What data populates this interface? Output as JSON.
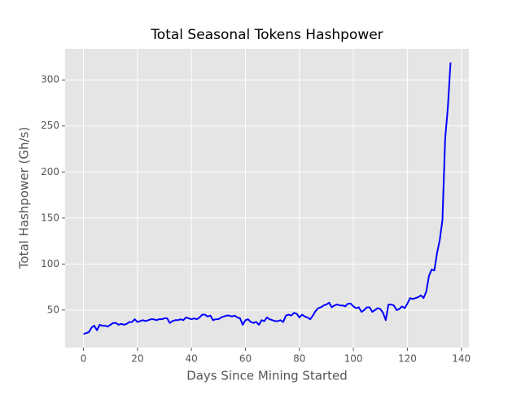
{
  "chart_data": {
    "type": "line",
    "title": "Total Seasonal Tokens Hashpower",
    "xlabel": "Days Since Mining Started",
    "ylabel": "Total Hashpower (Gh/s)",
    "x": [
      0,
      1,
      2,
      3,
      4,
      5,
      6,
      7,
      8,
      9,
      10,
      11,
      12,
      13,
      14,
      15,
      16,
      17,
      18,
      19,
      20,
      21,
      22,
      23,
      24,
      25,
      26,
      27,
      28,
      29,
      30,
      31,
      32,
      33,
      34,
      35,
      36,
      37,
      38,
      39,
      40,
      41,
      42,
      43,
      44,
      45,
      46,
      47,
      48,
      49,
      50,
      51,
      52,
      53,
      54,
      55,
      56,
      57,
      58,
      59,
      60,
      61,
      62,
      63,
      64,
      65,
      66,
      67,
      68,
      69,
      70,
      71,
      72,
      73,
      74,
      75,
      76,
      77,
      78,
      79,
      80,
      81,
      82,
      83,
      84,
      85,
      86,
      87,
      88,
      89,
      90,
      91,
      92,
      93,
      94,
      95,
      96,
      97,
      98,
      99,
      100,
      101,
      102,
      103,
      104,
      105,
      106,
      107,
      108,
      109,
      110,
      111,
      112,
      113,
      114,
      115,
      116,
      117,
      118,
      119,
      120,
      121,
      122,
      123,
      124,
      125,
      126,
      127,
      128,
      129,
      130,
      131,
      132,
      133,
      134,
      135,
      136
    ],
    "series": [
      {
        "name": "Total Hashpower",
        "color": "#0000ff",
        "values": [
          24,
          25,
          26,
          31,
          33,
          28,
          34,
          33,
          33,
          32,
          34,
          36,
          36,
          34,
          35,
          34,
          35,
          37,
          37,
          40,
          37,
          38,
          39,
          38,
          39,
          40,
          40,
          39,
          40,
          40,
          41,
          41,
          36,
          38,
          39,
          39,
          40,
          39,
          42,
          41,
          40,
          41,
          40,
          42,
          45,
          45,
          43,
          44,
          39,
          40,
          40,
          42,
          43,
          44,
          44,
          43,
          44,
          42,
          41,
          34,
          39,
          40,
          37,
          36,
          37,
          34,
          39,
          38,
          42,
          40,
          39,
          38,
          38,
          39,
          37,
          44,
          45,
          44,
          47,
          46,
          42,
          45,
          43,
          42,
          40,
          44,
          49,
          52,
          53,
          55,
          56,
          58,
          53,
          55,
          56,
          55,
          55,
          54,
          57,
          57,
          54,
          52,
          53,
          48,
          50,
          53,
          53,
          48,
          50,
          52,
          51,
          47,
          39,
          56,
          56,
          55,
          50,
          51,
          54,
          52,
          57,
          63,
          62,
          63,
          64,
          66,
          63,
          70,
          87,
          94,
          93,
          112,
          126,
          148,
          236,
          270,
          319
        ]
      }
    ],
    "xlim": [
      -6.8,
      142.8
    ],
    "ylim": [
      9.2,
      333.8
    ],
    "xticks": [
      0,
      20,
      40,
      60,
      80,
      100,
      120,
      140
    ],
    "yticks": [
      50,
      100,
      150,
      200,
      250,
      300
    ],
    "grid": true
  }
}
